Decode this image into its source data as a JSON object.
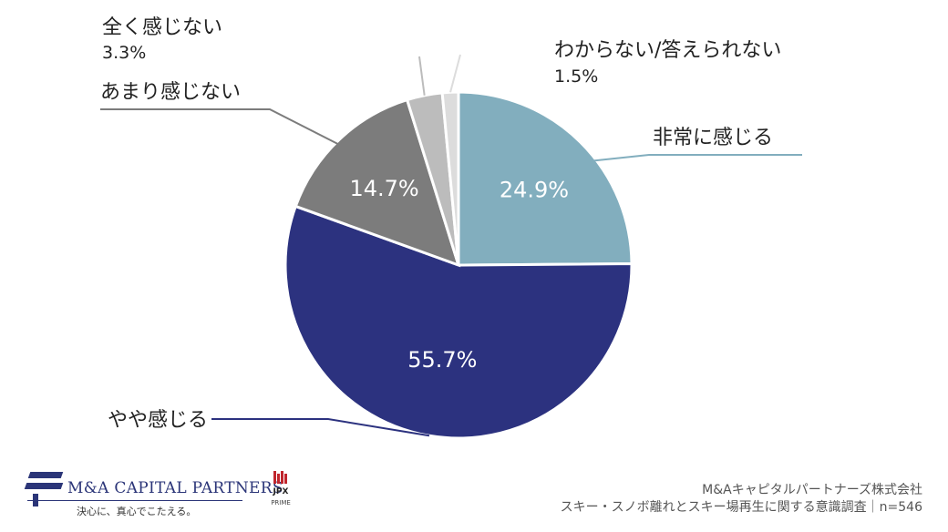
{
  "chart_data": {
    "type": "pie",
    "start_angle_deg": 0,
    "direction": "clockwise",
    "slices": [
      {
        "label": "非常に感じる",
        "value": 24.9,
        "display": "24.9%",
        "color": "#82aebe"
      },
      {
        "label": "やや感じる",
        "value": 55.7,
        "display": "55.7%",
        "color": "#2c327f"
      },
      {
        "label": "あまり感じない",
        "value": 14.7,
        "display": "14.7%",
        "color": "#7c7c7c"
      },
      {
        "label": "全く感じない",
        "value": 3.3,
        "display": "3.3%",
        "color": "#bcbcbc"
      },
      {
        "label": "わからない/答えられない",
        "value": 1.5,
        "display": "1.5%",
        "color": "#dcdcdc"
      }
    ]
  },
  "footer": {
    "company_logo_text": "M&A CAPITAL PARTNERS",
    "company_tagline": "決心に、真心でこたえる。",
    "jpx_label": "JPX",
    "jpx_sub": "PRIME",
    "source_line1": "M&Aキャピタルパートナーズ株式会社",
    "source_line2": "スキー・スノボ離れとスキー場再生に関する意識調査｜n=546"
  }
}
